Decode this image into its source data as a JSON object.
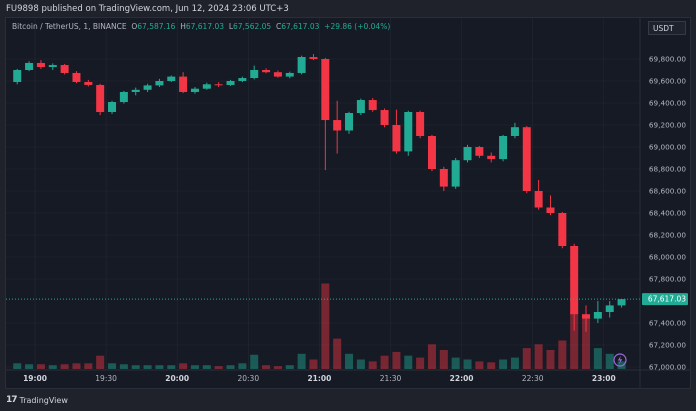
{
  "header": {
    "published": "FU9898 published on TradingView.com, Jun 12, 2024 23:06 UTC+3"
  },
  "legend": {
    "symbol": "Bitcoin / TetherUS, 1, BINANCE",
    "open_label": "O",
    "open": "67,587.16",
    "high_label": "H",
    "high": "67,617.03",
    "low_label": "L",
    "low": "67,562.05",
    "close_label": "C",
    "close": "67,617.03",
    "change": "+29.86 (+0.04%)"
  },
  "currency_button": "USDT",
  "footer": {
    "brand": "TradingView",
    "logo_mark": "17"
  },
  "colors": {
    "up": "#22ab94",
    "down": "#f23645",
    "background": "#161a25",
    "grid": "#232734",
    "axis_text": "#b2b5be",
    "last_price": "#22ab94",
    "lightning": "#9c6ade"
  },
  "icons": {
    "lightning": "lightning-icon"
  },
  "chart_data": {
    "type": "candlestick",
    "title": "Bitcoin / TetherUS, 1, BINANCE",
    "interval_note": "approximate OHLC read off 1-minute chart, aggregated to 5-minute steps",
    "ylim": [
      67000,
      70000
    ],
    "y_ticks": [
      "67,000.00",
      "67,200.00",
      "67,400.00",
      "67,800.00",
      "68,000.00",
      "68,200.00",
      "68,400.00",
      "68,600.00",
      "68,800.00",
      "69,000.00",
      "69,200.00",
      "69,400.00",
      "69,600.00",
      "69,800.00"
    ],
    "x_ticks": [
      {
        "label": "19:00",
        "bold": true
      },
      {
        "label": "19:30",
        "bold": false
      },
      {
        "label": "20:00",
        "bold": true
      },
      {
        "label": "20:30",
        "bold": false
      },
      {
        "label": "21:00",
        "bold": true
      },
      {
        "label": "21:30",
        "bold": false
      },
      {
        "label": "22:00",
        "bold": true
      },
      {
        "label": "22:30",
        "bold": false
      },
      {
        "label": "23:00",
        "bold": true
      }
    ],
    "last_price": "67,617.03",
    "grid": true,
    "candles": [
      {
        "t": "18:50",
        "o": 69591,
        "h": 69710,
        "l": 69570,
        "c": 69700,
        "v": 6
      },
      {
        "t": "18:55",
        "o": 69700,
        "h": 69780,
        "l": 69690,
        "c": 69764,
        "v": 5
      },
      {
        "t": "19:00",
        "o": 69764,
        "h": 69790,
        "l": 69710,
        "c": 69727,
        "v": 5
      },
      {
        "t": "19:05",
        "o": 69727,
        "h": 69760,
        "l": 69700,
        "c": 69745,
        "v": 4
      },
      {
        "t": "19:10",
        "o": 69745,
        "h": 69755,
        "l": 69660,
        "c": 69673,
        "v": 5
      },
      {
        "t": "19:15",
        "o": 69673,
        "h": 69690,
        "l": 69580,
        "c": 69591,
        "v": 6
      },
      {
        "t": "19:20",
        "o": 69591,
        "h": 69610,
        "l": 69550,
        "c": 69564,
        "v": 6
      },
      {
        "t": "19:25",
        "o": 69564,
        "h": 69575,
        "l": 69290,
        "c": 69318,
        "v": 14
      },
      {
        "t": "19:30",
        "o": 69318,
        "h": 69420,
        "l": 69300,
        "c": 69409,
        "v": 6
      },
      {
        "t": "19:35",
        "o": 69409,
        "h": 69510,
        "l": 69395,
        "c": 69500,
        "v": 5
      },
      {
        "t": "19:40",
        "o": 69500,
        "h": 69540,
        "l": 69470,
        "c": 69520,
        "v": 4
      },
      {
        "t": "19:45",
        "o": 69520,
        "h": 69575,
        "l": 69500,
        "c": 69560,
        "v": 4
      },
      {
        "t": "19:50",
        "o": 69560,
        "h": 69620,
        "l": 69545,
        "c": 69600,
        "v": 4
      },
      {
        "t": "19:55",
        "o": 69600,
        "h": 69650,
        "l": 69590,
        "c": 69640,
        "v": 4
      },
      {
        "t": "20:00",
        "o": 69640,
        "h": 69680,
        "l": 69490,
        "c": 69500,
        "v": 6
      },
      {
        "t": "20:05",
        "o": 69500,
        "h": 69545,
        "l": 69485,
        "c": 69530,
        "v": 4
      },
      {
        "t": "20:10",
        "o": 69530,
        "h": 69585,
        "l": 69520,
        "c": 69570,
        "v": 4
      },
      {
        "t": "20:15",
        "o": 69570,
        "h": 69590,
        "l": 69545,
        "c": 69564,
        "v": 3
      },
      {
        "t": "20:20",
        "o": 69564,
        "h": 69610,
        "l": 69555,
        "c": 69600,
        "v": 4
      },
      {
        "t": "20:25",
        "o": 69600,
        "h": 69640,
        "l": 69590,
        "c": 69627,
        "v": 6
      },
      {
        "t": "20:30",
        "o": 69627,
        "h": 69740,
        "l": 69615,
        "c": 69700,
        "v": 15
      },
      {
        "t": "20:35",
        "o": 69700,
        "h": 69715,
        "l": 69670,
        "c": 69680,
        "v": 4
      },
      {
        "t": "20:40",
        "o": 69680,
        "h": 69695,
        "l": 69630,
        "c": 69640,
        "v": 3
      },
      {
        "t": "20:45",
        "o": 69640,
        "h": 69685,
        "l": 69625,
        "c": 69673,
        "v": 4
      },
      {
        "t": "20:50",
        "o": 69673,
        "h": 69830,
        "l": 69660,
        "c": 69818,
        "v": 16
      },
      {
        "t": "20:55",
        "o": 69818,
        "h": 69845,
        "l": 69790,
        "c": 69800,
        "v": 10
      },
      {
        "t": "21:00",
        "o": 69800,
        "h": 69810,
        "l": 68790,
        "c": 69245,
        "v": 90
      },
      {
        "t": "21:05",
        "o": 69245,
        "h": 69420,
        "l": 68940,
        "c": 69150,
        "v": 32
      },
      {
        "t": "21:10",
        "o": 69150,
        "h": 69320,
        "l": 69120,
        "c": 69309,
        "v": 16
      },
      {
        "t": "21:15",
        "o": 69309,
        "h": 69440,
        "l": 69290,
        "c": 69427,
        "v": 10
      },
      {
        "t": "21:20",
        "o": 69427,
        "h": 69445,
        "l": 69320,
        "c": 69336,
        "v": 8
      },
      {
        "t": "21:25",
        "o": 69336,
        "h": 69350,
        "l": 69180,
        "c": 69200,
        "v": 14
      },
      {
        "t": "21:30",
        "o": 69200,
        "h": 69340,
        "l": 68940,
        "c": 68960,
        "v": 18
      },
      {
        "t": "21:35",
        "o": 68960,
        "h": 69330,
        "l": 68920,
        "c": 69318,
        "v": 14
      },
      {
        "t": "21:40",
        "o": 69318,
        "h": 69330,
        "l": 69080,
        "c": 69100,
        "v": 12
      },
      {
        "t": "21:45",
        "o": 69100,
        "h": 69110,
        "l": 68780,
        "c": 68800,
        "v": 26
      },
      {
        "t": "21:50",
        "o": 68800,
        "h": 68820,
        "l": 68600,
        "c": 68640,
        "v": 20
      },
      {
        "t": "21:55",
        "o": 68640,
        "h": 68900,
        "l": 68620,
        "c": 68880,
        "v": 12
      },
      {
        "t": "22:00",
        "o": 68880,
        "h": 69020,
        "l": 68860,
        "c": 69000,
        "v": 10
      },
      {
        "t": "22:05",
        "o": 69000,
        "h": 69010,
        "l": 68900,
        "c": 68920,
        "v": 8
      },
      {
        "t": "22:10",
        "o": 68920,
        "h": 68950,
        "l": 68860,
        "c": 68890,
        "v": 7
      },
      {
        "t": "22:15",
        "o": 68890,
        "h": 69110,
        "l": 68870,
        "c": 69100,
        "v": 10
      },
      {
        "t": "22:20",
        "o": 69100,
        "h": 69220,
        "l": 69080,
        "c": 69180,
        "v": 12
      },
      {
        "t": "22:25",
        "o": 69180,
        "h": 69190,
        "l": 68580,
        "c": 68600,
        "v": 22
      },
      {
        "t": "22:30",
        "o": 68600,
        "h": 68700,
        "l": 68430,
        "c": 68450,
        "v": 26
      },
      {
        "t": "22:35",
        "o": 68450,
        "h": 68560,
        "l": 68380,
        "c": 68400,
        "v": 20
      },
      {
        "t": "22:40",
        "o": 68400,
        "h": 68410,
        "l": 68080,
        "c": 68100,
        "v": 30
      },
      {
        "t": "22:45",
        "o": 68100,
        "h": 68120,
        "l": 67330,
        "c": 67480,
        "v": 62
      },
      {
        "t": "22:50",
        "o": 67480,
        "h": 67560,
        "l": 67320,
        "c": 67440,
        "v": 55
      },
      {
        "t": "22:55",
        "o": 67440,
        "h": 67600,
        "l": 67400,
        "c": 67500,
        "v": 22
      },
      {
        "t": "23:00",
        "o": 67500,
        "h": 67600,
        "l": 67450,
        "c": 67560,
        "v": 16
      },
      {
        "t": "23:05",
        "o": 67560,
        "h": 67617.03,
        "l": 67540,
        "c": 67617.03,
        "v": 8
      }
    ]
  }
}
